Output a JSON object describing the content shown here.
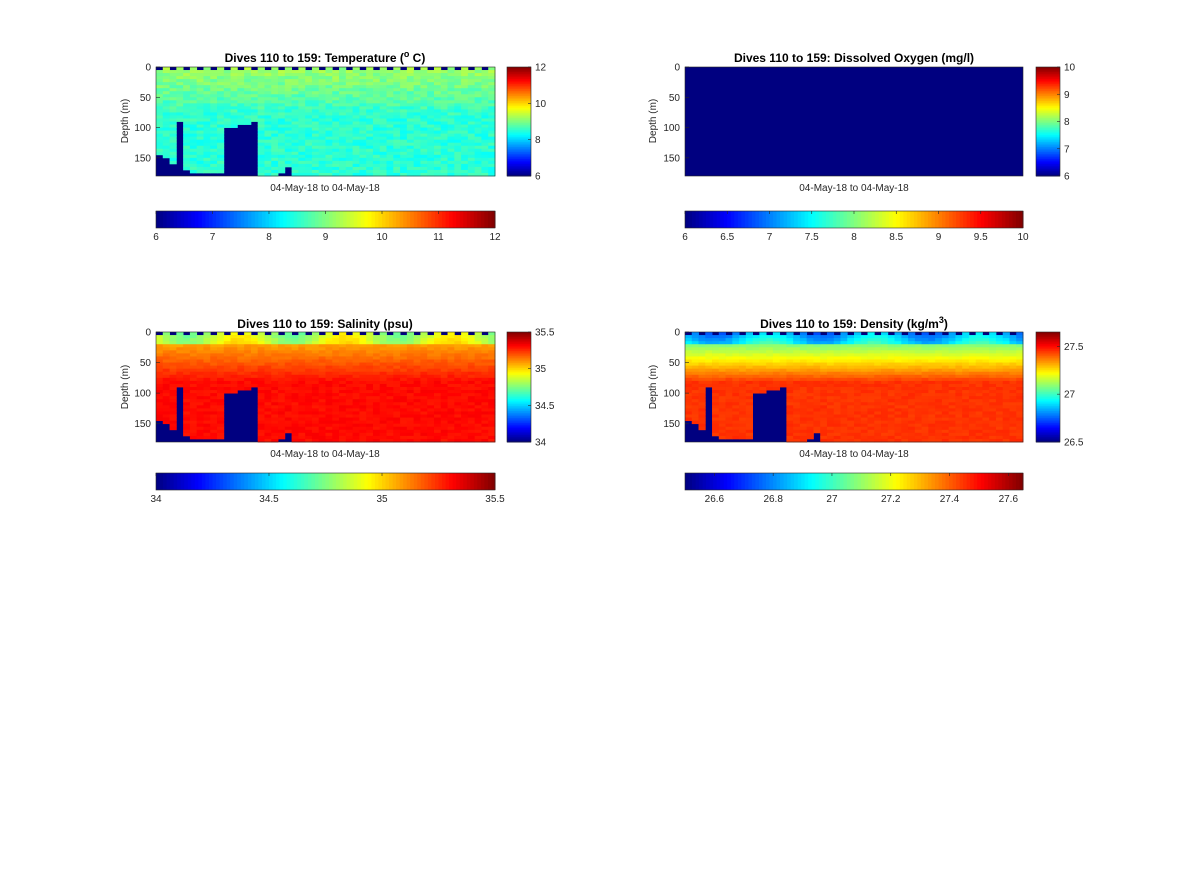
{
  "chart_data": [
    {
      "type": "heatmap",
      "title": "Dives 110 to 159: Temperature (",
      "title_sup": "o",
      "title_tail": " C)",
      "ylabel": "Depth (m)",
      "xlabel": "04-May-18 to 04-May-18",
      "ylim": [
        0,
        180
      ],
      "y_reversed": true,
      "y_ticks": [
        "0",
        "50",
        "100",
        "150"
      ],
      "clim": [
        6,
        12
      ],
      "colorbar_ticks": [
        "6",
        "8",
        "10",
        "12"
      ],
      "h_colorbar_ticks": [
        "6",
        "7",
        "8",
        "9",
        "10",
        "11",
        "12"
      ],
      "colormap": "jet",
      "surface_value": 9.2,
      "deep_value": 8.5,
      "variability": 0.12
    },
    {
      "type": "heatmap",
      "title": "Dives 110 to 159: Dissolved Oxygen (mg/l)",
      "ylabel": "Depth (m)",
      "xlabel": "04-May-18 to 04-May-18",
      "ylim": [
        0,
        180
      ],
      "y_reversed": true,
      "y_ticks": [
        "0",
        "50",
        "100",
        "150"
      ],
      "clim": [
        6,
        10
      ],
      "colorbar_ticks": [
        "6",
        "7",
        "8",
        "9",
        "10"
      ],
      "h_colorbar_ticks": [
        "6",
        "6.5",
        "7",
        "7.5",
        "8",
        "8.5",
        "9",
        "9.5",
        "10"
      ],
      "colormap": "jet",
      "uniform_value": 6
    },
    {
      "type": "heatmap",
      "title": "Dives 110 to 159: Salinity (psu)",
      "ylabel": "Depth (m)",
      "xlabel": "04-May-18 to 04-May-18",
      "ylim": [
        0,
        180
      ],
      "y_reversed": true,
      "y_ticks": [
        "0",
        "50",
        "100",
        "150"
      ],
      "clim": [
        34,
        35.5
      ],
      "colorbar_ticks": [
        "34",
        "34.5",
        "35",
        "35.5"
      ],
      "h_colorbar_ticks": [
        "34",
        "34.5",
        "35",
        "35.5"
      ],
      "colormap": "jet",
      "surface_value": 35.0,
      "deep_value": 35.3,
      "variability": 0.05
    },
    {
      "type": "heatmap",
      "title": "Dives 110 to 159: Density (kg/m",
      "title_sup": "3",
      "title_tail": ")",
      "ylabel": "Depth (m)",
      "xlabel": "04-May-18 to 04-May-18",
      "ylim": [
        0,
        180
      ],
      "y_reversed": true,
      "y_ticks": [
        "0",
        "50",
        "100",
        "150"
      ],
      "clim": [
        26.5,
        27.65
      ],
      "colorbar_ticks": [
        "26.5",
        "27",
        "27.5"
      ],
      "h_colorbar_ticks": [
        "26.6",
        "26.8",
        "27",
        "27.2",
        "27.4",
        "27.6"
      ],
      "colormap": "jet",
      "surface_value": 26.95,
      "deep_value": 27.45,
      "variability": 0.04
    }
  ],
  "profile": {
    "dives": 50,
    "max_depth": [
      145,
      150,
      160,
      90,
      170,
      175,
      175,
      175,
      175,
      175,
      100,
      98,
      96,
      96,
      92,
      178,
      178,
      180,
      175,
      165,
      180,
      180,
      180,
      180,
      180,
      180,
      180,
      180,
      180,
      180,
      180,
      180,
      180,
      180,
      180,
      180,
      180,
      180,
      180,
      180,
      180,
      180,
      180,
      180,
      180,
      180,
      180,
      180,
      180,
      180
    ],
    "bottom_tail": [
      145,
      140,
      150,
      75,
      160,
      155,
      165,
      160,
      160,
      100,
      100,
      95,
      95,
      80,
      175,
      165,
      175,
      170,
      150,
      170,
      175,
      180,
      180,
      180,
      180,
      180,
      180,
      180,
      180,
      180,
      180,
      180,
      180,
      180,
      180,
      180,
      180,
      180,
      178,
      176,
      174,
      174,
      172,
      172,
      172,
      175,
      178,
      170,
      165,
      155
    ]
  }
}
